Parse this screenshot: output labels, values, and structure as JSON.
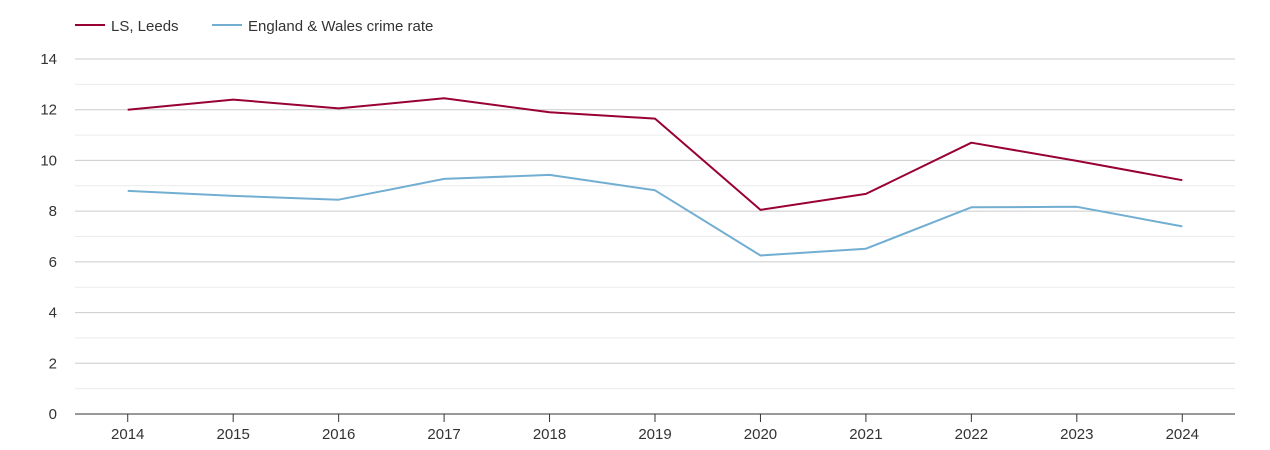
{
  "chart_data": {
    "type": "line",
    "title": "",
    "xlabel": "",
    "ylabel": "",
    "categories": [
      "2014",
      "2015",
      "2016",
      "2017",
      "2018",
      "2019",
      "2020",
      "2021",
      "2022",
      "2023",
      "2024"
    ],
    "ylim": [
      0,
      14
    ],
    "yticks": [
      "0",
      "2",
      "4",
      "6",
      "8",
      "10",
      "12",
      "14"
    ],
    "grid": true,
    "legend_position": "top-left",
    "series": [
      {
        "name": "LS, Leeds",
        "color": "#990033",
        "values": [
          12.0,
          12.4,
          12.05,
          12.45,
          11.9,
          11.65,
          8.05,
          8.68,
          10.7,
          9.98,
          9.22
        ]
      },
      {
        "name": "England & Wales crime rate",
        "color": "#72aed2",
        "values": [
          8.8,
          8.6,
          8.45,
          9.27,
          9.43,
          8.82,
          6.25,
          6.52,
          8.15,
          8.17,
          7.4
        ]
      }
    ]
  }
}
